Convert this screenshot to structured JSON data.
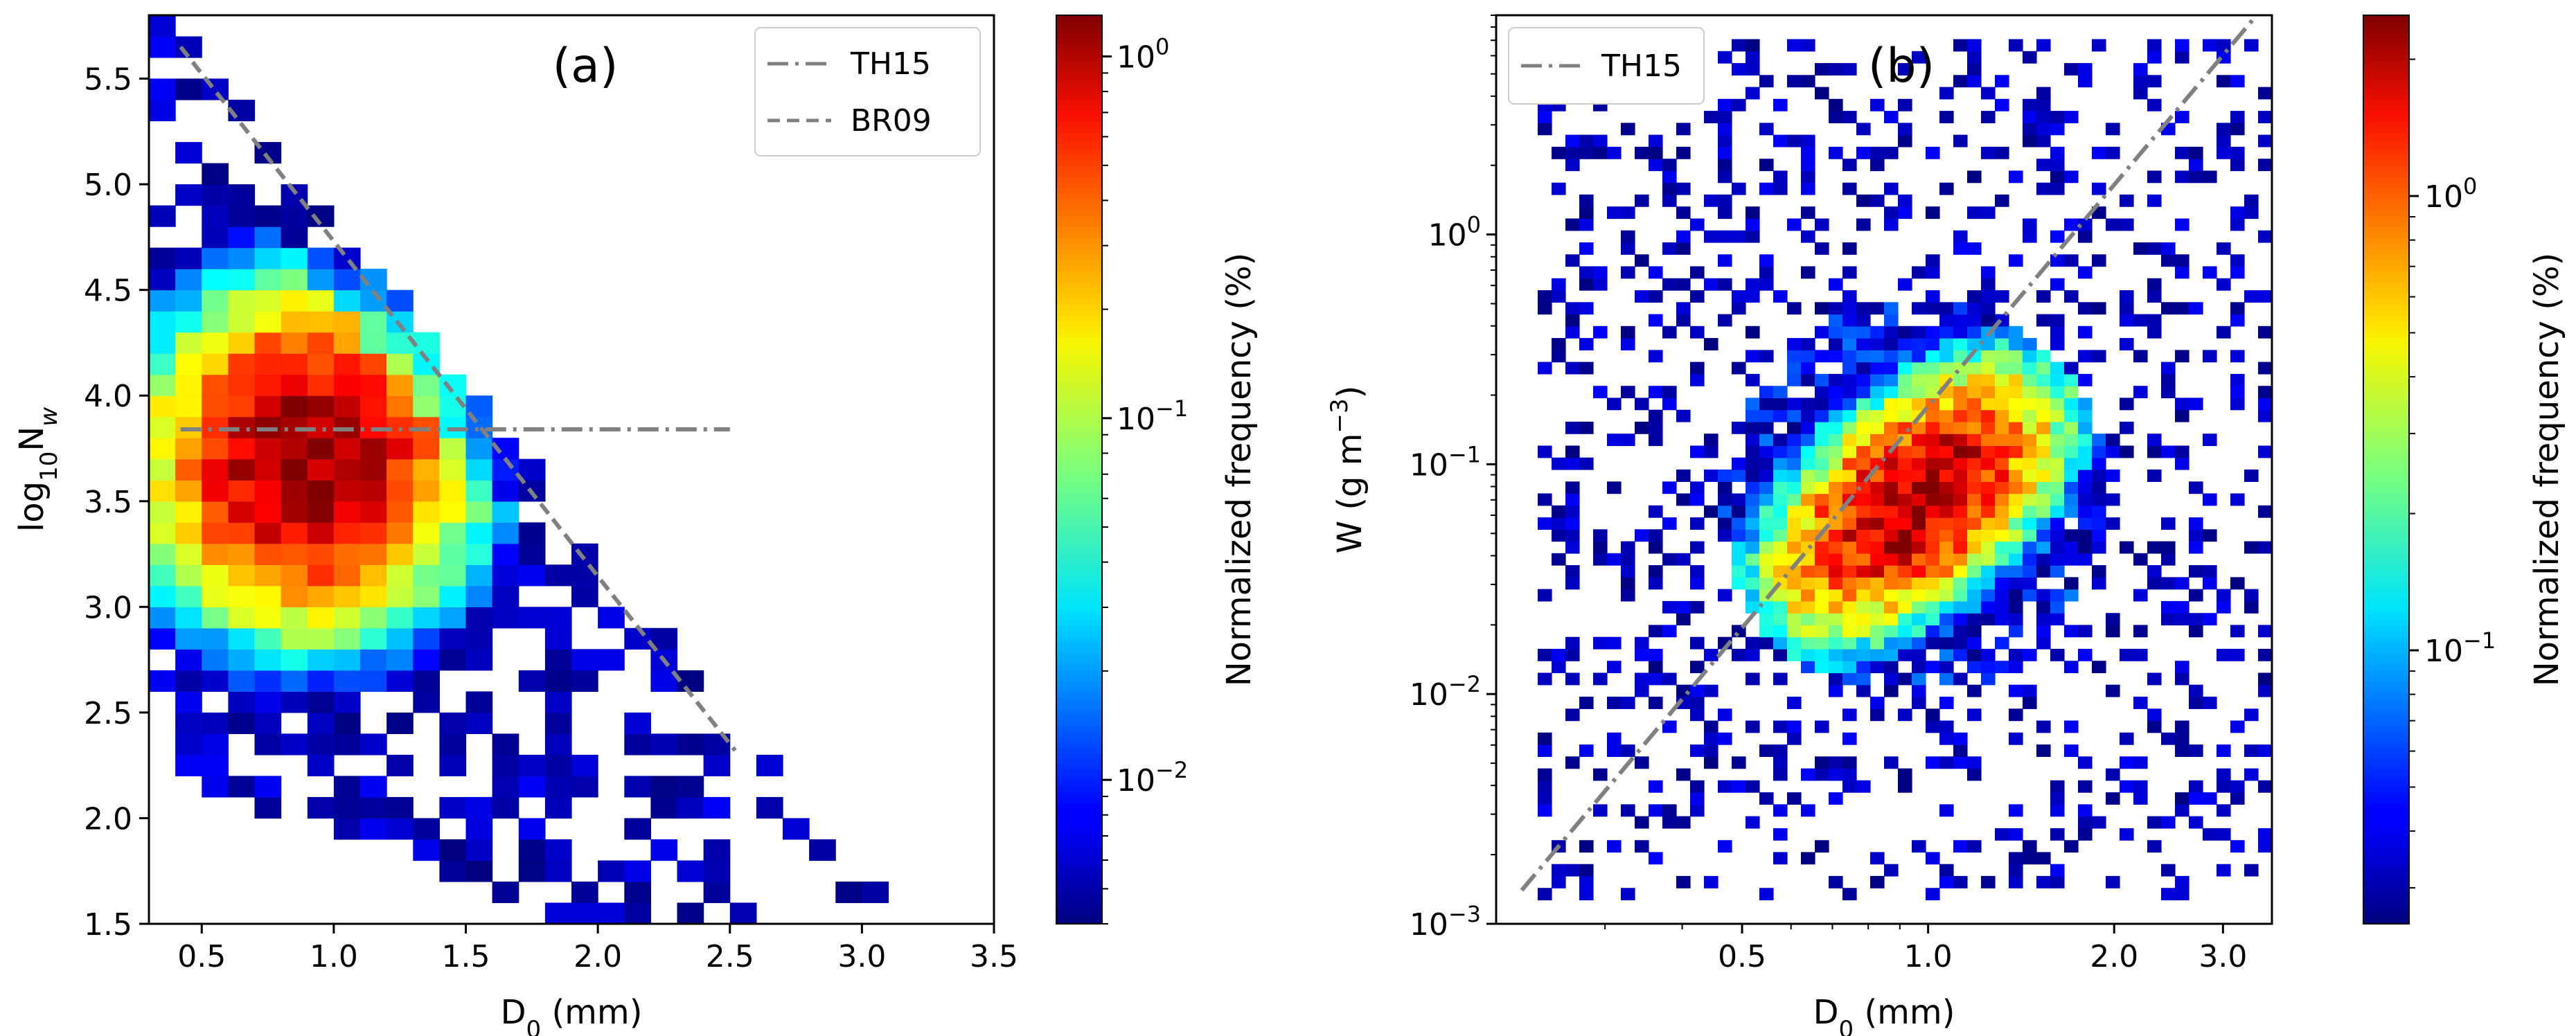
{
  "chart_data": [
    {
      "type": "heatmap",
      "panel_label": "(a)",
      "xlabel": "D₀ (mm)",
      "xlabel_main": "D",
      "xlabel_sub": "0",
      "xlabel_rest": " (mm)",
      "ylabel_pre": "log",
      "ylabel_sub": "10",
      "ylabel_mid": "N",
      "ylabel_sub2": "w",
      "xlim": [
        0.3,
        3.5
      ],
      "ylim": [
        1.5,
        5.8
      ],
      "xticks": [
        "0.5",
        "1.0",
        "1.5",
        "2.0",
        "2.5",
        "3.0",
        "3.5"
      ],
      "xtick_values": [
        0.5,
        1.0,
        1.5,
        2.0,
        2.5,
        3.0,
        3.5
      ],
      "yticks": [
        "1.5",
        "2.0",
        "2.5",
        "3.0",
        "3.5",
        "4.0",
        "4.5",
        "5.0",
        "5.5"
      ],
      "ytick_values": [
        1.5,
        2.0,
        2.5,
        3.0,
        3.5,
        4.0,
        4.5,
        5.0,
        5.5
      ],
      "bin_width_x": 0.1,
      "bin_width_y": 0.1,
      "density_model": {
        "peak_x": 0.9,
        "peak_y": 3.7,
        "peak_value": 1.2,
        "colorscale_range": [
          0.004,
          1.3
        ]
      },
      "reference_lines": [
        {
          "name": "TH15",
          "style": "dash-dot",
          "points": [
            [
              0.42,
              3.84
            ],
            [
              2.5,
              3.84
            ]
          ]
        },
        {
          "name": "BR09",
          "style": "dashed",
          "points": [
            [
              0.42,
              5.65
            ],
            [
              2.52,
              2.32
            ]
          ]
        }
      ],
      "legend": [
        "TH15",
        "BR09"
      ],
      "legend_position": "top-right",
      "colorbar": {
        "label": "Normalized frequency (%)",
        "scale": "log",
        "range": [
          0.004,
          1.3
        ],
        "ticks": [
          {
            "value": 0.01,
            "base": "10",
            "exp": "−2"
          },
          {
            "value": 0.1,
            "base": "10",
            "exp": "−1"
          },
          {
            "value": 1,
            "base": "10",
            "exp": "0"
          }
        ]
      }
    },
    {
      "type": "heatmap",
      "panel_label": "(b)",
      "xlabel_main": "D",
      "xlabel_sub": "0",
      "xlabel_rest": " (mm)",
      "ylabel_pre": "W (g m",
      "ylabel_sup": "−3",
      "ylabel_post": ")",
      "xscale": "log",
      "yscale": "log",
      "xlim": [
        0.2,
        3.6
      ],
      "ylim": [
        0.001,
        9
      ],
      "xticks": [
        "0.5",
        "1.0",
        "2.0",
        "3.0"
      ],
      "xtick_values": [
        0.5,
        1.0,
        2.0,
        3.0
      ],
      "yticks": [
        {
          "value": 0.001,
          "base": "10",
          "exp": "−3"
        },
        {
          "value": 0.01,
          "base": "10",
          "exp": "−2"
        },
        {
          "value": 0.1,
          "base": "10",
          "exp": "−1"
        },
        {
          "value": 1,
          "base": "10",
          "exp": "0"
        }
      ],
      "density_model": {
        "peak_x": 0.95,
        "peak_y": 0.07,
        "peak_value": 2.2,
        "colorscale_range": [
          0.025,
          2.5
        ]
      },
      "reference_lines": [
        {
          "name": "TH15",
          "style": "dash-dot",
          "points": [
            [
              0.22,
              0.0014
            ],
            [
              3.4,
              9.0
            ]
          ]
        }
      ],
      "legend": [
        "TH15"
      ],
      "legend_position": "top-left",
      "colorbar": {
        "label": "Normalized frequency (%)",
        "scale": "log",
        "range": [
          0.025,
          2.5
        ],
        "ticks": [
          {
            "value": 0.1,
            "base": "10",
            "exp": "−1"
          },
          {
            "value": 1,
            "base": "10",
            "exp": "0"
          }
        ]
      }
    }
  ]
}
